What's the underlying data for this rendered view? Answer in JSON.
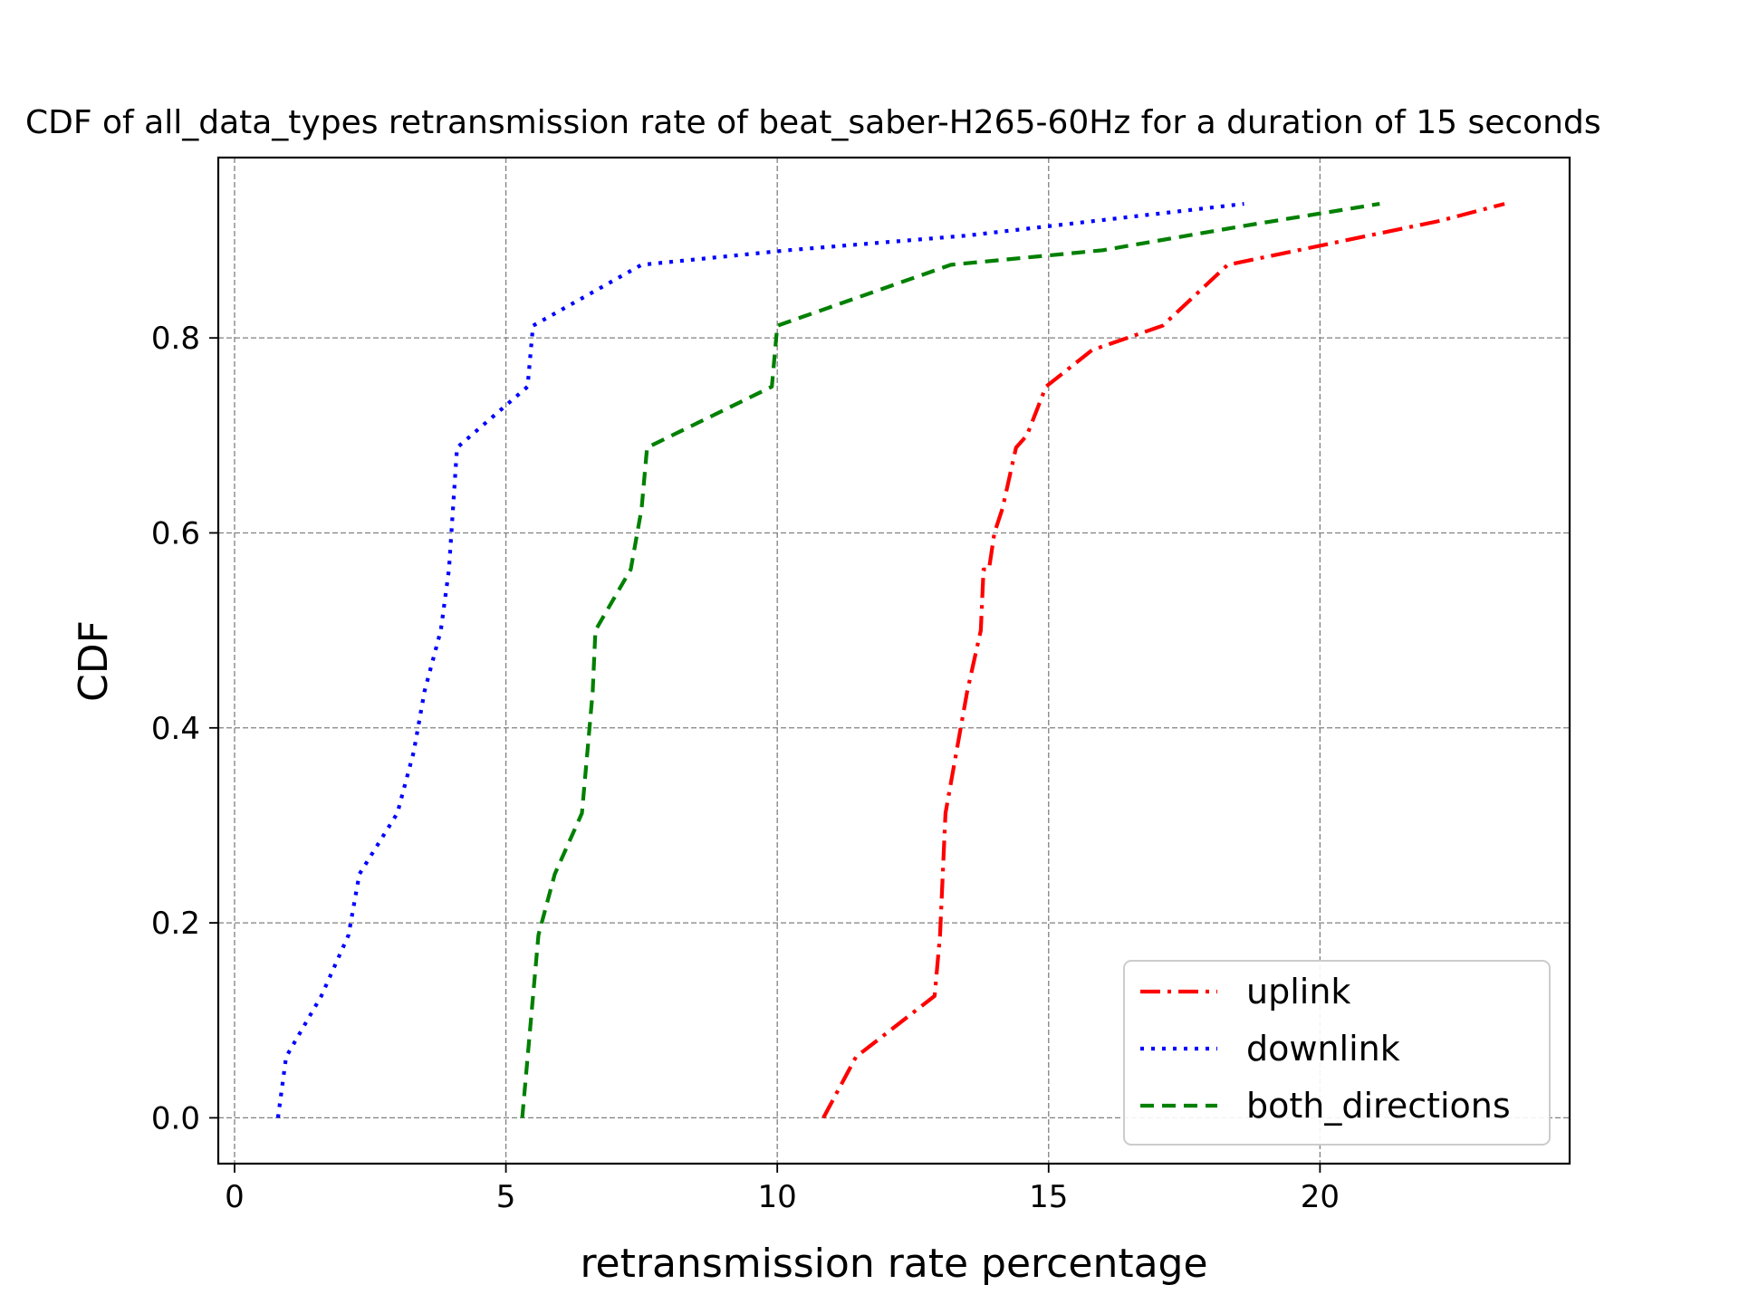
{
  "chart_data": {
    "type": "line",
    "title": "CDF of all_data_types retransmission rate of beat_saber-H265-60Hz for a duration of 15 seconds",
    "xlabel": "retransmission rate percentage",
    "ylabel": "CDF",
    "xlim": [
      -0.3,
      24.6
    ],
    "ylim": [
      -0.047,
      0.985
    ],
    "xticks": [
      0,
      5,
      10,
      15,
      20
    ],
    "xtick_labels": [
      "0",
      "5",
      "10",
      "15",
      "20"
    ],
    "yticks": [
      0.0,
      0.2,
      0.4,
      0.6,
      0.8
    ],
    "ytick_labels": [
      "0.0",
      "0.2",
      "0.4",
      "0.6",
      "0.8"
    ],
    "grid": true,
    "legend_position": "bottom-right",
    "series": [
      {
        "name": "uplink",
        "color": "#ff0000",
        "linestyle": "dashdot",
        "x": [
          10.85,
          11.45,
          12.9,
          13.0,
          13.05,
          13.1,
          13.3,
          13.5,
          13.75,
          13.8,
          13.85,
          13.9,
          14.0,
          14.15,
          14.4,
          14.6,
          14.95,
          15.8,
          17.1,
          18.3,
          19.6,
          20.9,
          22.2,
          23.4
        ],
        "y": [
          0.0,
          0.0625,
          0.125,
          0.1875,
          0.25,
          0.3125,
          0.375,
          0.4375,
          0.5,
          0.5625,
          0.5625,
          0.5625,
          0.6,
          0.625,
          0.6875,
          0.7,
          0.75,
          0.7875,
          0.8125,
          0.875,
          0.89,
          0.905,
          0.92,
          0.9375
        ]
      },
      {
        "name": "downlink",
        "color": "#0000ff",
        "linestyle": "dotted",
        "x": [
          0.8,
          0.95,
          1.6,
          2.1,
          2.3,
          3.0,
          3.3,
          3.5,
          3.8,
          3.95,
          4.1,
          5.4,
          5.5,
          7.5,
          10.2,
          13.5,
          18.6
        ],
        "y": [
          0.0,
          0.0625,
          0.125,
          0.1875,
          0.25,
          0.3125,
          0.375,
          0.4375,
          0.5,
          0.5625,
          0.6875,
          0.75,
          0.8125,
          0.875,
          0.89,
          0.905,
          0.9375
        ]
      },
      {
        "name": "both_directions",
        "color": "#008000",
        "linestyle": "dashed",
        "x": [
          5.3,
          5.6,
          5.9,
          6.4,
          6.5,
          6.6,
          6.65,
          7.3,
          7.5,
          7.6,
          9.9,
          10.0,
          13.2,
          16.0,
          18.6,
          21.1
        ],
        "y": [
          0.0,
          0.1875,
          0.25,
          0.3125,
          0.375,
          0.4375,
          0.5,
          0.5625,
          0.625,
          0.6875,
          0.75,
          0.8125,
          0.875,
          0.89,
          0.915,
          0.9375
        ]
      }
    ]
  }
}
